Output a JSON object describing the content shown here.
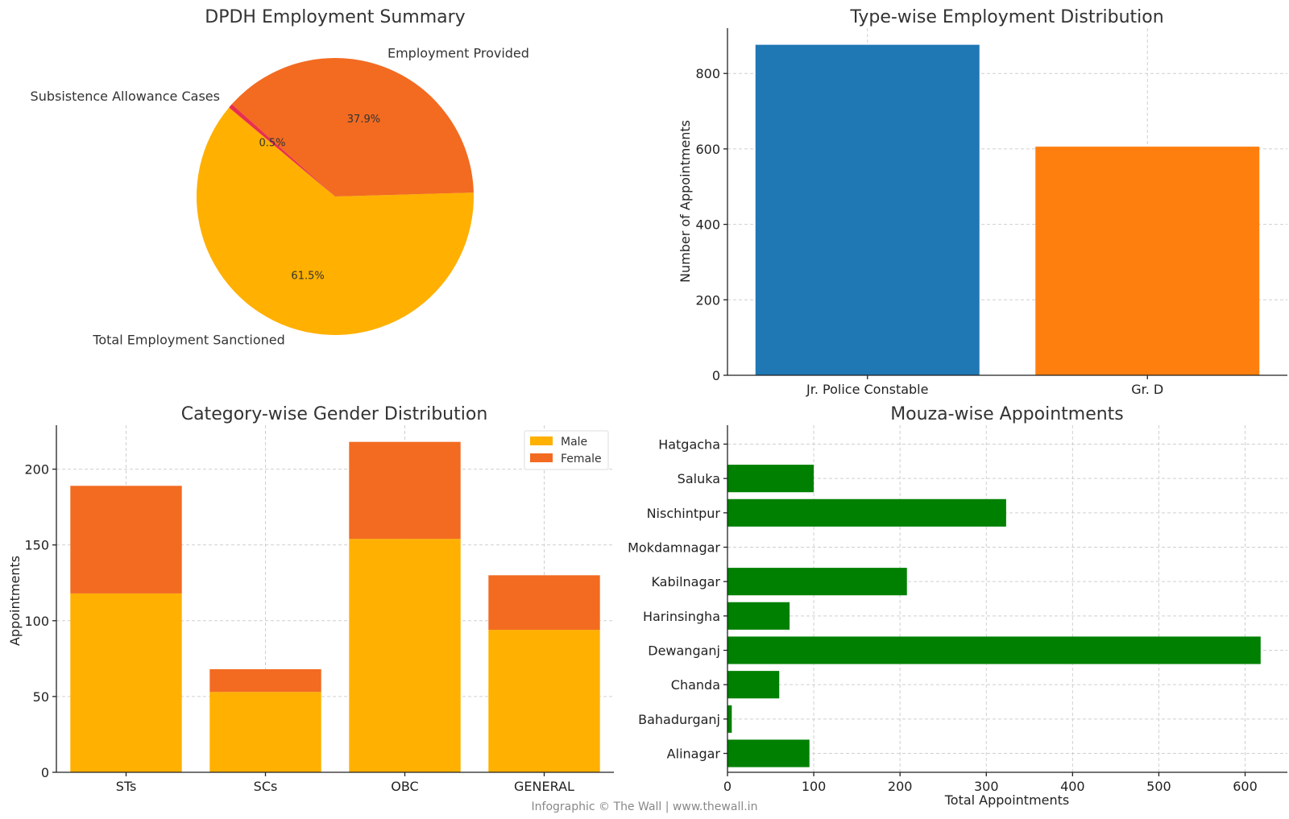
{
  "footer": "Infographic © The Wall | www.thewall.in",
  "chart_data": [
    {
      "id": "summary",
      "type": "pie",
      "title": "DPDH Employment Summary",
      "labels": [
        "Total Employment Sanctioned",
        "Employment Provided",
        "Subsistence Allowance Cases"
      ],
      "values": [
        61.5,
        37.9,
        0.5
      ],
      "value_labels": [
        "61.5%",
        "37.9%",
        "0.5%"
      ],
      "colors": [
        "#FFB000",
        "#F26B21",
        "#E8304E"
      ],
      "start_angle_deg": 140
    },
    {
      "id": "typewise",
      "type": "bar",
      "title": "Type-wise Employment Distribution",
      "categories": [
        "Jr. Police Constable",
        "Gr. D"
      ],
      "values": [
        876,
        606
      ],
      "colors": [
        "#1F77B4",
        "#FF7F0E"
      ],
      "xlabel": "",
      "ylabel": "Number of Appointments",
      "ylim": [
        0,
        920
      ],
      "yticks": [
        0,
        200,
        400,
        600,
        800
      ],
      "grid": true
    },
    {
      "id": "gender",
      "type": "bar",
      "stacked": true,
      "title": "Category-wise Gender Distribution",
      "categories": [
        "STs",
        "SCs",
        "OBC",
        "GENERAL"
      ],
      "series": [
        {
          "name": "Male",
          "values": [
            118,
            53,
            154,
            94
          ],
          "color": "#FFB000"
        },
        {
          "name": "Female",
          "values": [
            71,
            15,
            64,
            36
          ],
          "color": "#F26B21"
        }
      ],
      "xlabel": "",
      "ylabel": "Appointments",
      "ylim": [
        0,
        229
      ],
      "yticks": [
        0,
        50,
        100,
        150,
        200
      ],
      "legend": "top-right",
      "grid": true
    },
    {
      "id": "mouza",
      "type": "bar",
      "orientation": "horizontal",
      "title": "Mouza-wise Appointments",
      "categories": [
        "Alinagar",
        "Bahadurganj",
        "Chanda",
        "Dewanganj",
        "Harinsingha",
        "Kabilnagar",
        "Mokdamnagar",
        "Nischintpur",
        "Saluka",
        "Hatgacha"
      ],
      "values": [
        95,
        5,
        60,
        618,
        72,
        208,
        0,
        323,
        100,
        0
      ],
      "color": "#008000",
      "xlabel": "Total Appointments",
      "ylabel": "",
      "xlim": [
        0,
        649
      ],
      "xticks": [
        0,
        100,
        200,
        300,
        400,
        500,
        600
      ],
      "grid": true
    }
  ]
}
